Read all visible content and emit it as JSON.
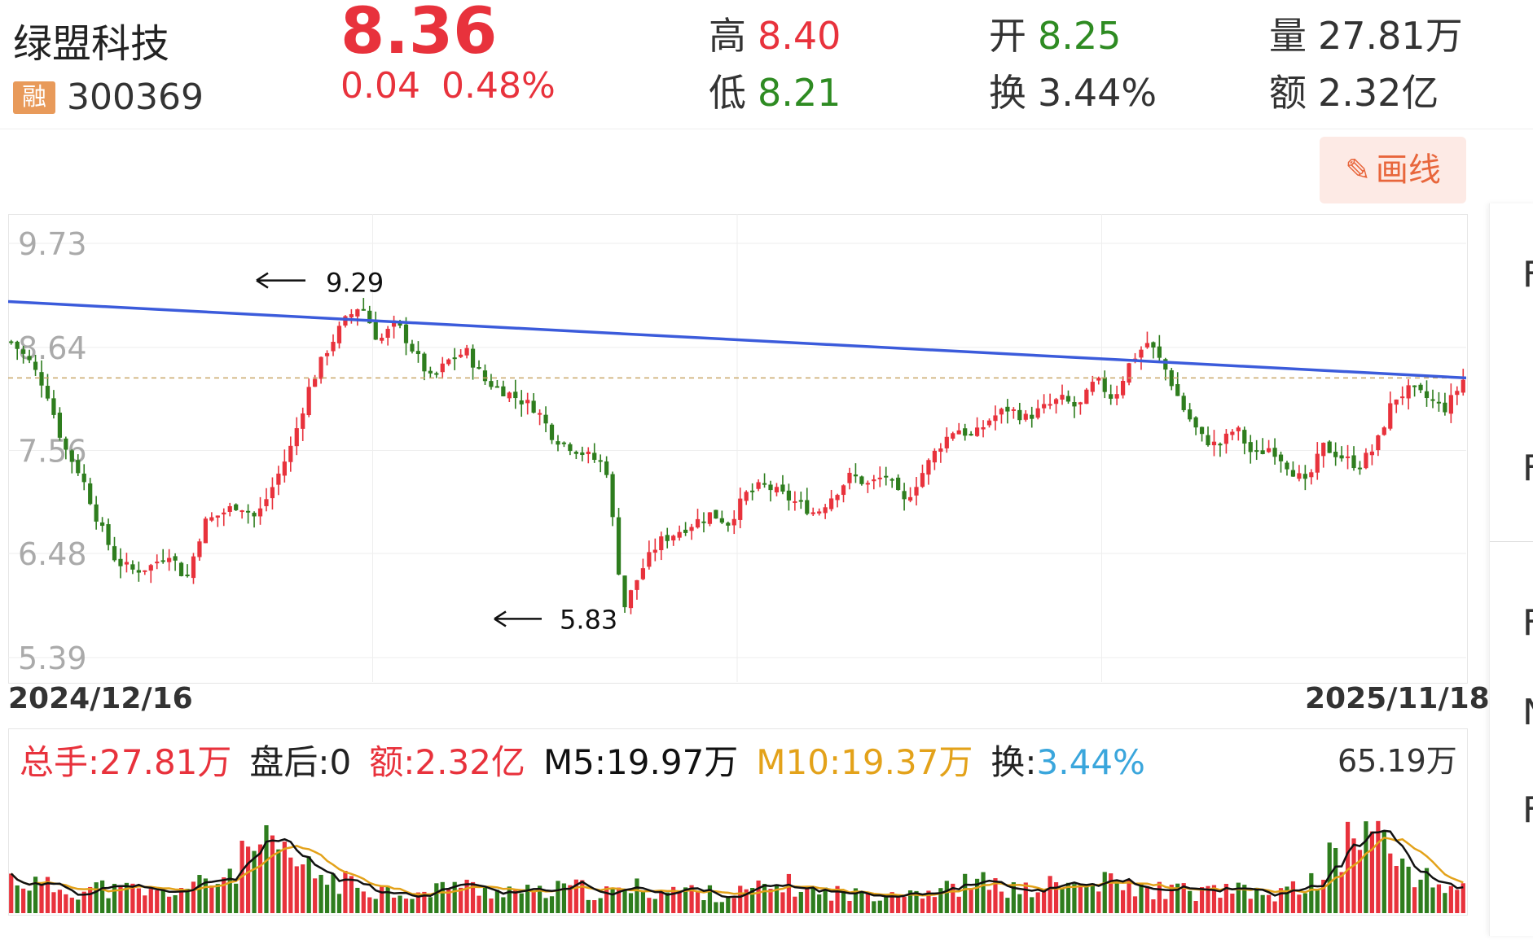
{
  "header": {
    "name": "绿盟科技",
    "rong_badge": "融",
    "code": "300369",
    "price": "8.36",
    "change": "0.04",
    "change_pct": "0.48%",
    "high_label": "高",
    "high_value": "8.40",
    "low_label": "低",
    "low_value": "8.21",
    "open_label": "开",
    "open_value": "8.25",
    "turnover_label": "换",
    "turnover_value": "3.44%",
    "volume_label": "量",
    "volume_value": "27.81万",
    "amount_label": "额",
    "amount_value": "2.32亿"
  },
  "toolbar": {
    "draw_icon": "pencil-icon",
    "draw_label": "画线"
  },
  "side_panel": {
    "fragments": [
      "F",
      "F",
      "F",
      "N",
      "F"
    ]
  },
  "chart_data": {
    "type": "candlestick",
    "y_ticks": [
      "9.73",
      "8.64",
      "7.56",
      "6.48",
      "5.39"
    ],
    "ylim": [
      5.39,
      9.73
    ],
    "x_start": "2024/12/16",
    "x_end": "2025/11/18",
    "grid": true,
    "annotations": {
      "high_marker": "9.29",
      "low_marker": "5.83"
    },
    "trendline": {
      "color": "#3b5bdb",
      "start_value": 9.12,
      "end_value": 8.32
    },
    "reference_price": 8.32,
    "price_path": [
      8.7,
      8.5,
      8.2,
      7.6,
      7.3,
      6.8,
      6.4,
      6.3,
      6.35,
      6.5,
      6.2,
      6.8,
      6.9,
      7.0,
      6.85,
      7.2,
      7.6,
      8.2,
      8.6,
      8.9,
      9.1,
      8.7,
      8.9,
      8.6,
      8.3,
      8.5,
      8.6,
      8.3,
      8.2,
      8.1,
      8.0,
      7.7,
      7.6,
      7.5,
      7.4,
      5.9,
      6.3,
      6.6,
      6.7,
      6.8,
      6.9,
      6.8,
      7.1,
      7.2,
      7.1,
      7.0,
      6.9,
      7.1,
      7.3,
      7.2,
      7.3,
      7.0,
      7.3,
      7.6,
      7.8,
      7.7,
      7.9,
      8.0,
      7.9,
      8.0,
      8.1,
      8.0,
      8.3,
      8.1,
      8.5,
      8.7,
      8.4,
      8.0,
      7.7,
      7.6,
      7.8,
      7.5,
      7.6,
      7.4,
      7.2,
      7.6,
      7.5,
      7.4,
      7.6,
      8.1,
      8.2,
      8.1,
      8.0,
      8.3
    ],
    "volume_max_label": "65.19万",
    "volume_ylim": [
      0,
      65.19
    ],
    "volume_path": [
      16,
      14,
      12,
      11,
      10,
      12,
      10,
      11,
      9,
      10,
      12,
      13,
      16,
      22,
      30,
      27,
      24,
      19,
      16,
      14,
      12,
      11,
      10,
      9,
      8,
      15,
      12,
      10,
      11,
      10,
      9,
      10,
      12,
      10,
      9,
      10,
      12,
      9,
      11,
      10,
      9,
      8,
      10,
      11,
      13,
      12,
      9,
      10,
      8,
      9,
      10,
      11,
      10,
      10,
      12,
      14,
      13,
      11,
      10,
      12,
      13,
      12,
      13,
      14,
      12,
      10,
      11,
      10,
      9,
      11,
      10,
      9,
      8,
      10,
      12,
      20,
      28,
      40,
      34,
      26,
      20,
      14,
      12,
      13
    ],
    "volume_ma5_color": "#111111",
    "volume_ma10_color": "#e3a21a"
  },
  "volume_legend": {
    "total": "总手:27.81万",
    "after_hours": "盘后:0",
    "amount": "额:2.32亿",
    "ma5": "M5:19.97万",
    "ma10": "M10:19.37万",
    "turnover_label": "换:",
    "turnover_value": "3.44%"
  },
  "colors": {
    "up": "#e8323c",
    "down": "#2e7d1e",
    "trendline": "#3b5bdb",
    "ma10": "#e3a21a",
    "turnover": "#3aa6dc"
  }
}
